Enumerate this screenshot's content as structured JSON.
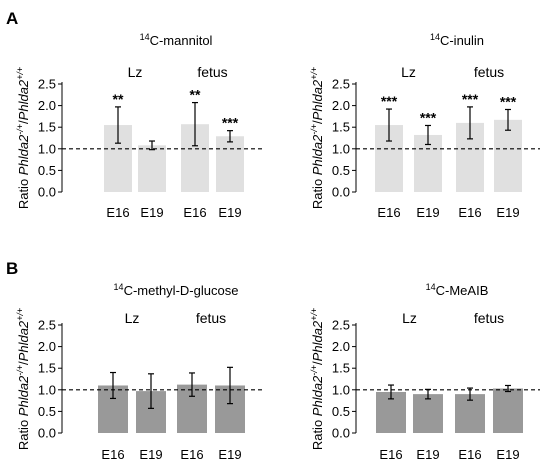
{
  "panels": [
    {
      "label": "A"
    },
    {
      "label": "B"
    }
  ],
  "chart_data": [
    {
      "type": "bar",
      "panel": "A",
      "title_sup": "14",
      "title_main": "C-mannitol",
      "ylabel_prefix": "Ratio ",
      "ylabel_italic_1": "Phlda2",
      "ylabel_sup_1": "-/+",
      "ylabel_sep": "/",
      "ylabel_italic_2": "Phlda2",
      "ylabel_sup_2": "+/+",
      "groups": [
        "Lz",
        "fetus"
      ],
      "categories": [
        "E16",
        "E19",
        "E16",
        "E19"
      ],
      "values": [
        1.55,
        1.08,
        1.57,
        1.29
      ],
      "errors": [
        0.42,
        0.1,
        0.5,
        0.13
      ],
      "significance": [
        "**",
        "",
        "**",
        "***"
      ],
      "bar_color": "#e0e0e0",
      "ylim": [
        0,
        2.5
      ],
      "yticks": [
        "0.0",
        "0.5",
        "1.0",
        "1.5",
        "2.0",
        "2.5"
      ],
      "reference_line": 1.0
    },
    {
      "type": "bar",
      "panel": "A",
      "title_sup": "14",
      "title_main": "C-inulin",
      "ylabel_prefix": "Ratio ",
      "ylabel_italic_1": "Phlda2",
      "ylabel_sup_1": "-/+",
      "ylabel_sep": "/",
      "ylabel_italic_2": "Phlda2",
      "ylabel_sup_2": "+/+",
      "groups": [
        "Lz",
        "fetus"
      ],
      "categories": [
        "E16",
        "E19",
        "E16",
        "E19"
      ],
      "values": [
        1.55,
        1.32,
        1.6,
        1.67
      ],
      "errors": [
        0.37,
        0.22,
        0.37,
        0.24
      ],
      "significance": [
        "***",
        "***",
        "***",
        "***"
      ],
      "bar_color": "#e0e0e0",
      "ylim": [
        0,
        2.5
      ],
      "yticks": [
        "0.0",
        "0.5",
        "1.0",
        "1.5",
        "2.0",
        "2.5"
      ],
      "reference_line": 1.0
    },
    {
      "type": "bar",
      "panel": "B",
      "title_sup": "14",
      "title_main": "C-methyl-D-glucose",
      "ylabel_prefix": "Ratio ",
      "ylabel_italic_1": "Phlda2",
      "ylabel_sup_1": "-/+",
      "ylabel_sep": "/",
      "ylabel_italic_2": "Phlda2",
      "ylabel_sup_2": "+/+",
      "groups": [
        "Lz",
        "fetus"
      ],
      "categories": [
        "E16",
        "E19",
        "E16",
        "E19"
      ],
      "values": [
        1.1,
        0.97,
        1.12,
        1.1
      ],
      "errors": [
        0.3,
        0.4,
        0.27,
        0.42
      ],
      "significance": [
        "",
        "",
        "",
        ""
      ],
      "bar_color": "#999999",
      "ylim": [
        0,
        2.5
      ],
      "yticks": [
        "0.0",
        "0.5",
        "1.0",
        "1.5",
        "2.0",
        "2.5"
      ],
      "reference_line": 1.0
    },
    {
      "type": "bar",
      "panel": "B",
      "title_sup": "14",
      "title_main": "C-MeAIB",
      "ylabel_prefix": "Ratio ",
      "ylabel_italic_1": "Phlda2",
      "ylabel_sup_1": "-/+",
      "ylabel_sep": "/",
      "ylabel_italic_2": "Phlda2",
      "ylabel_sup_2": "+/+",
      "groups": [
        "Lz",
        "fetus"
      ],
      "categories": [
        "E16",
        "E19",
        "E16",
        "E19"
      ],
      "values": [
        0.95,
        0.9,
        0.9,
        1.03
      ],
      "errors": [
        0.16,
        0.11,
        0.14,
        0.07
      ],
      "significance": [
        "",
        "",
        "",
        ""
      ],
      "bar_color": "#999999",
      "ylim": [
        0,
        2.5
      ],
      "yticks": [
        "0.0",
        "0.5",
        "1.0",
        "1.5",
        "2.0",
        "2.5"
      ],
      "reference_line": 1.0
    }
  ]
}
